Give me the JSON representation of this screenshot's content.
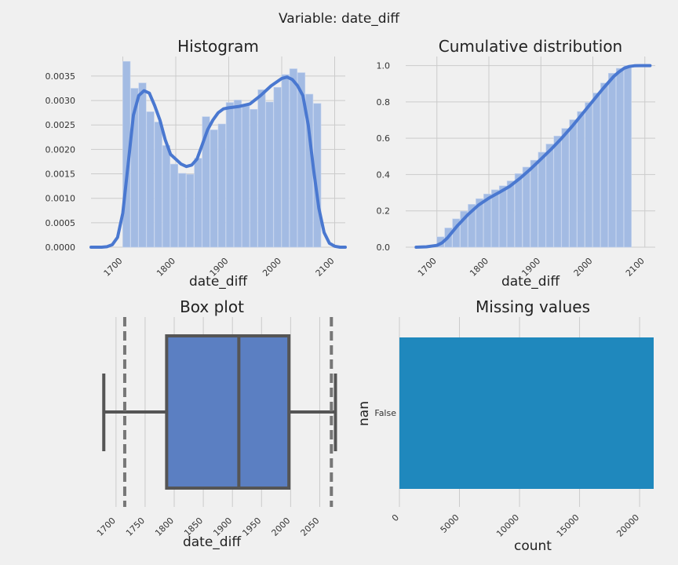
{
  "suptitle": "Variable: date_diff",
  "colors": {
    "background": "#f0f0f0",
    "grid": "#cbcbcb",
    "hist_fill": "#a3bbe3",
    "kde_line": "#4a78d0",
    "box_fill": "#5b7fc2",
    "box_edge": "#555555",
    "bar_fill": "#1f88bd"
  },
  "chart_data": [
    {
      "id": "histogram",
      "type": "bar",
      "title": "Histogram",
      "xlabel": "date_diff",
      "ylabel": "",
      "xlim": [
        1640,
        2120
      ],
      "ylim": [
        0,
        0.0039
      ],
      "xticks": [
        "1700",
        "1800",
        "1900",
        "2000",
        "2100"
      ],
      "yticks": [
        "0.0000",
        "0.0005",
        "0.0010",
        "0.0015",
        "0.0020",
        "0.0025",
        "0.0030",
        "0.0035"
      ],
      "bin_start": 1700,
      "bin_width": 15,
      "values": [
        0.0038,
        0.00325,
        0.00336,
        0.00277,
        0.00256,
        0.00208,
        0.0017,
        0.00151,
        0.00149,
        0.00182,
        0.00267,
        0.0024,
        0.00252,
        0.00296,
        0.00301,
        0.0029,
        0.00282,
        0.00322,
        0.00297,
        0.00327,
        0.00353,
        0.00365,
        0.00357,
        0.00313,
        0.00294
      ],
      "kde": {
        "x": [
          1640,
          1660,
          1670,
          1680,
          1690,
          1700,
          1710,
          1720,
          1730,
          1740,
          1750,
          1760,
          1770,
          1780,
          1790,
          1800,
          1810,
          1820,
          1830,
          1840,
          1850,
          1860,
          1870,
          1880,
          1890,
          1900,
          1920,
          1940,
          1960,
          1980,
          2000,
          2010,
          2020,
          2030,
          2040,
          2050,
          2060,
          2070,
          2080,
          2090,
          2100,
          2110,
          2120
        ],
        "y": [
          0.0,
          0.0,
          1e-05,
          5e-05,
          0.0002,
          0.0007,
          0.0017,
          0.0027,
          0.0031,
          0.0032,
          0.00315,
          0.0029,
          0.0026,
          0.0022,
          0.0019,
          0.0018,
          0.0017,
          0.00165,
          0.00168,
          0.0018,
          0.0021,
          0.0024,
          0.0026,
          0.00275,
          0.00283,
          0.00285,
          0.00288,
          0.00293,
          0.0031,
          0.0033,
          0.00345,
          0.00348,
          0.00343,
          0.0033,
          0.0031,
          0.0025,
          0.0016,
          0.0008,
          0.0003,
          8e-05,
          2e-05,
          0.0,
          0.0
        ]
      }
    },
    {
      "id": "cumulative",
      "type": "bar",
      "title": "Cumulative distribution",
      "xlabel": "date_diff",
      "ylabel": "",
      "xlim": [
        1640,
        2120
      ],
      "ylim": [
        0,
        1.05
      ],
      "xticks": [
        "1700",
        "1800",
        "1900",
        "2000",
        "2100"
      ],
      "yticks": [
        "0.0",
        "0.2",
        "0.4",
        "0.6",
        "0.8",
        "1.0"
      ],
      "bin_start": 1700,
      "bin_width": 15,
      "values": [
        0.057,
        0.106,
        0.156,
        0.198,
        0.236,
        0.267,
        0.293,
        0.316,
        0.338,
        0.365,
        0.405,
        0.441,
        0.479,
        0.523,
        0.568,
        0.612,
        0.654,
        0.702,
        0.747,
        0.796,
        0.849,
        0.904,
        0.958,
        0.985,
        1.0
      ],
      "kde": {
        "x": [
          1660,
          1680,
          1700,
          1710,
          1720,
          1730,
          1740,
          1760,
          1780,
          1800,
          1820,
          1840,
          1860,
          1880,
          1900,
          1920,
          1940,
          1960,
          1980,
          2000,
          2020,
          2040,
          2050,
          2060,
          2070,
          2080,
          2090,
          2100,
          2110
        ],
        "y": [
          0.0,
          0.002,
          0.01,
          0.024,
          0.05,
          0.085,
          0.12,
          0.18,
          0.232,
          0.27,
          0.302,
          0.335,
          0.38,
          0.43,
          0.485,
          0.54,
          0.6,
          0.665,
          0.735,
          0.805,
          0.875,
          0.94,
          0.965,
          0.985,
          0.995,
          0.999,
          1.0,
          1.0,
          1.0
        ]
      }
    },
    {
      "id": "boxplot",
      "type": "box",
      "title": "Box plot",
      "xlabel": "date_diff",
      "xlim": [
        1680,
        2075
      ],
      "xticks": [
        "1700",
        "1750",
        "1800",
        "1850",
        "1900",
        "1950",
        "2000",
        "2050"
      ],
      "whisker_low": 1679,
      "q1": 1787,
      "median": 1911,
      "q3": 1997,
      "whisker_high": 2077,
      "dashed_lines": [
        1715,
        2070
      ]
    },
    {
      "id": "missing",
      "type": "bar",
      "orientation": "horizontal",
      "title": "Missing values",
      "xlabel": "count",
      "ylabel": "nan",
      "xlim": [
        0,
        21300
      ],
      "xticks": [
        "0",
        "5000",
        "10000",
        "15000",
        "20000"
      ],
      "categories": [
        "False"
      ],
      "values": [
        21500
      ]
    }
  ]
}
